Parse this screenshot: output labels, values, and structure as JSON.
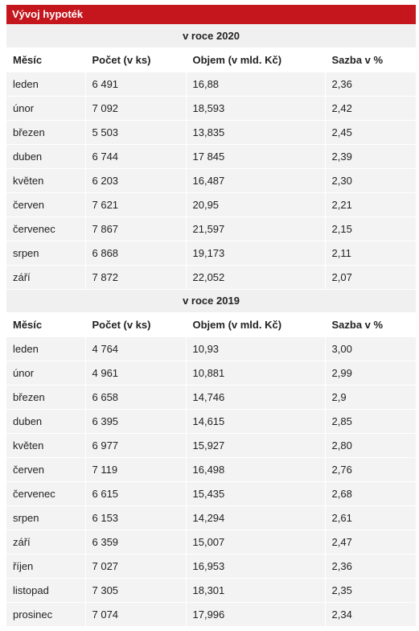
{
  "title": "Vývoj hypoték",
  "columns": [
    "Měsíc",
    "Počet (v ks)",
    "Objem (v mld. Kč)",
    "Sazba v %"
  ],
  "sections": [
    {
      "year_label": "v roce 2020",
      "rows": [
        [
          "leden",
          "6 491",
          "16,88",
          "2,36"
        ],
        [
          "únor",
          "7 092",
          "18,593",
          "2,42"
        ],
        [
          "březen",
          "5 503",
          "13,835",
          "2,45"
        ],
        [
          "duben",
          "6 744",
          "17 845",
          "2,39"
        ],
        [
          "květen",
          "6 203",
          "16,487",
          "2,30"
        ],
        [
          "červen",
          "7 621",
          "20,95",
          "2,21"
        ],
        [
          "červenec",
          "7 867",
          "21,597",
          "2,15"
        ],
        [
          "srpen",
          "6 868",
          "19,173",
          "2,11"
        ],
        [
          "září",
          "7 872",
          "22,052",
          "2,07"
        ]
      ]
    },
    {
      "year_label": "v roce 2019",
      "rows": [
        [
          "leden",
          "4 764",
          "10,93",
          "3,00"
        ],
        [
          "únor",
          "4 961",
          "10,881",
          "2,99"
        ],
        [
          "březen",
          "6 658",
          "14,746",
          "2,9"
        ],
        [
          "duben",
          "6 395",
          "14,615",
          "2,85"
        ],
        [
          "květen",
          "6 977",
          "15,927",
          "2,80"
        ],
        [
          "červen",
          "7 119",
          "16,498",
          "2,76"
        ],
        [
          "červenec",
          "6 615",
          "15,435",
          "2,68"
        ],
        [
          "srpen",
          "6 153",
          "14,294",
          "2,61"
        ],
        [
          "září",
          "6 359",
          "15,007",
          "2,47"
        ],
        [
          "říjen",
          "7 027",
          "16,953",
          "2,36"
        ],
        [
          "listopad",
          "7 305",
          "18,301",
          "2,35"
        ],
        [
          "prosinec",
          "7 074",
          "17,996",
          "2,34"
        ]
      ]
    }
  ]
}
